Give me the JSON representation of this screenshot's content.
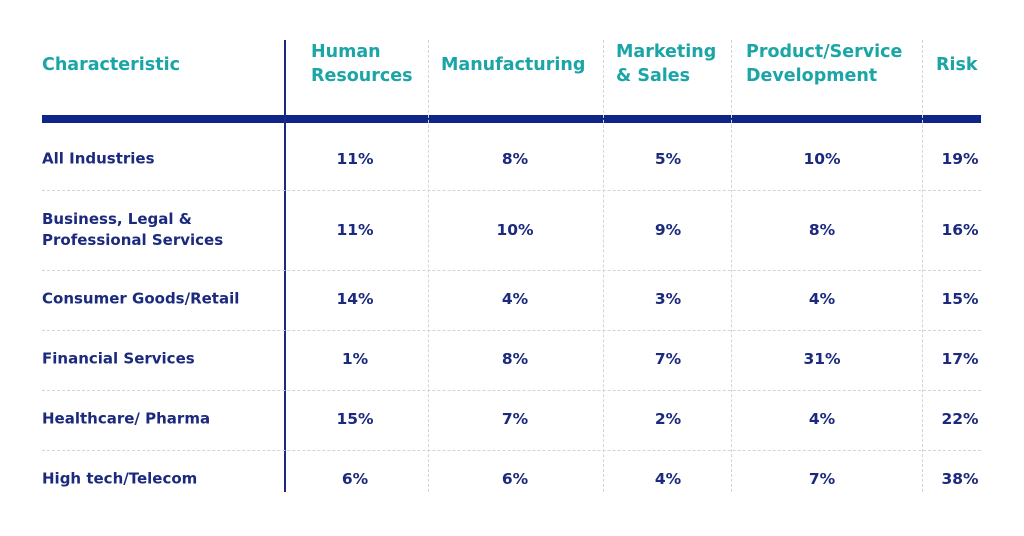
{
  "colors": {
    "header_text": "#1ba5a6",
    "body_text": "#1b2a7e",
    "rule": "#0f2587"
  },
  "chart_data": {
    "type": "table",
    "columns": [
      "Characteristic",
      "Human\nResources",
      "Manufacturing",
      "Marketing\n& Sales",
      "Product/Service\nDevelopment",
      "Risk"
    ],
    "rows": [
      {
        "label": "All Industries",
        "values": [
          "11%",
          "8%",
          "5%",
          "10%",
          "19%"
        ]
      },
      {
        "label": "Business, Legal &\nProfessional Services",
        "values": [
          "11%",
          "10%",
          "9%",
          "8%",
          "16%"
        ]
      },
      {
        "label": "Consumer Goods/Retail",
        "values": [
          "14%",
          "4%",
          "3%",
          "4%",
          "15%"
        ]
      },
      {
        "label": "Financial Services",
        "values": [
          "1%",
          "8%",
          "7%",
          "31%",
          "17%"
        ]
      },
      {
        "label": "Healthcare/ Pharma",
        "values": [
          "15%",
          "7%",
          "2%",
          "4%",
          "22%"
        ]
      },
      {
        "label": "High tech/Telecom",
        "values": [
          "6%",
          "6%",
          "4%",
          "7%",
          "38%"
        ]
      }
    ]
  }
}
